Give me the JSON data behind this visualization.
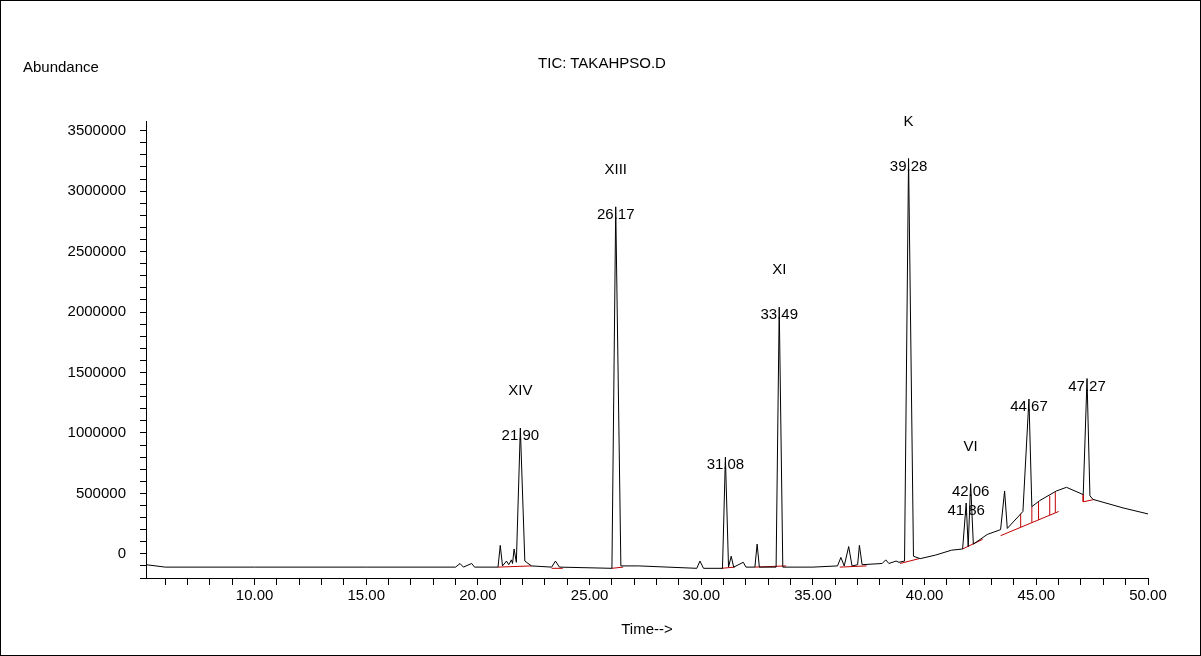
{
  "chart_data": {
    "type": "line",
    "title": "TIC: TAKAHPSO.D",
    "xlabel": "Time-->",
    "ylabel": "Abundance",
    "xlim": [
      5.14,
      50
    ],
    "ylim": [
      -200000,
      3580000
    ],
    "xticks": [
      {
        "value": 6,
        "label": null
      },
      {
        "value": 7,
        "label": null
      },
      {
        "value": 8,
        "label": null
      },
      {
        "value": 9,
        "label": null
      },
      {
        "value": 10,
        "label": "10.00"
      },
      {
        "value": 11,
        "label": null
      },
      {
        "value": 12,
        "label": null
      },
      {
        "value": 13,
        "label": null
      },
      {
        "value": 14,
        "label": null
      },
      {
        "value": 15,
        "label": "15.00"
      },
      {
        "value": 16,
        "label": null
      },
      {
        "value": 17,
        "label": null
      },
      {
        "value": 18,
        "label": null
      },
      {
        "value": 19,
        "label": null
      },
      {
        "value": 20,
        "label": "20.00"
      },
      {
        "value": 21,
        "label": null
      },
      {
        "value": 22,
        "label": null
      },
      {
        "value": 23,
        "label": null
      },
      {
        "value": 24,
        "label": null
      },
      {
        "value": 25,
        "label": "25.00"
      },
      {
        "value": 26,
        "label": null
      },
      {
        "value": 27,
        "label": null
      },
      {
        "value": 28,
        "label": null
      },
      {
        "value": 29,
        "label": null
      },
      {
        "value": 30,
        "label": "30.00"
      },
      {
        "value": 31,
        "label": null
      },
      {
        "value": 32,
        "label": null
      },
      {
        "value": 33,
        "label": null
      },
      {
        "value": 34,
        "label": null
      },
      {
        "value": 35,
        "label": "35.00"
      },
      {
        "value": 36,
        "label": null
      },
      {
        "value": 37,
        "label": null
      },
      {
        "value": 38,
        "label": null
      },
      {
        "value": 39,
        "label": null
      },
      {
        "value": 40,
        "label": "40.00"
      },
      {
        "value": 41,
        "label": null
      },
      {
        "value": 42,
        "label": null
      },
      {
        "value": 43,
        "label": null
      },
      {
        "value": 44,
        "label": null
      },
      {
        "value": 45,
        "label": "45.00"
      },
      {
        "value": 46,
        "label": null
      },
      {
        "value": 47,
        "label": null
      },
      {
        "value": 48,
        "label": null
      },
      {
        "value": 49,
        "label": null
      },
      {
        "value": 50,
        "label": "50.00"
      }
    ],
    "yticks": [
      {
        "value": -200000,
        "label": null
      },
      {
        "value": -100000,
        "label": null
      },
      0,
      {
        "value": 100000,
        "label": null
      },
      {
        "value": 200000,
        "label": null
      },
      {
        "value": 300000,
        "label": null
      },
      {
        "value": 400000,
        "label": null
      },
      500000,
      {
        "value": 600000,
        "label": null
      },
      {
        "value": 700000,
        "label": null
      },
      {
        "value": 800000,
        "label": null
      },
      {
        "value": 900000,
        "label": null
      },
      1000000,
      {
        "value": 1100000,
        "label": null
      },
      {
        "value": 1200000,
        "label": null
      },
      {
        "value": 1300000,
        "label": null
      },
      {
        "value": 1400000,
        "label": null
      },
      1500000,
      {
        "value": 1600000,
        "label": null
      },
      {
        "value": 1700000,
        "label": null
      },
      {
        "value": 1800000,
        "label": null
      },
      {
        "value": 1900000,
        "label": null
      },
      2000000,
      {
        "value": 2100000,
        "label": null
      },
      {
        "value": 2200000,
        "label": null
      },
      {
        "value": 2300000,
        "label": null
      },
      {
        "value": 2400000,
        "label": null
      },
      2500000,
      {
        "value": 2600000,
        "label": null
      },
      {
        "value": 2700000,
        "label": null
      },
      {
        "value": 2800000,
        "label": null
      },
      {
        "value": 2900000,
        "label": null
      },
      3000000,
      {
        "value": 3100000,
        "label": null
      },
      {
        "value": 3200000,
        "label": null
      },
      {
        "value": 3300000,
        "label": null
      },
      {
        "value": 3400000,
        "label": null
      },
      3500000
    ],
    "grid": false,
    "legend": false,
    "marker": "none",
    "line_style": "solid",
    "series": [
      {
        "color": "#000000",
        "x": [
          5.14,
          6,
          10,
          15,
          19.0,
          19.2,
          19.35,
          19.72,
          19.85,
          20.9,
          21.0,
          21.1,
          21.28,
          21.38,
          21.5,
          21.55,
          21.62,
          21.72,
          21.9,
          22.1,
          22.4,
          23.3,
          23.47,
          23.65,
          26.0,
          26.17,
          26.4,
          27.2,
          29.8,
          29.94,
          30.1,
          30.95,
          31.08,
          31.22,
          31.34,
          31.45,
          31.88,
          32.0,
          32.4,
          32.5,
          32.6,
          33.35,
          33.49,
          33.65,
          35,
          36.1,
          36.25,
          36.4,
          36.6,
          36.75,
          37.0,
          37.08,
          37.2,
          38.1,
          38.26,
          38.4,
          38.72,
          38.85,
          39.1,
          39.28,
          39.5,
          39.8,
          40.5,
          41.2,
          41.7,
          41.86,
          41.95,
          42.06,
          42.18,
          42.8,
          43.4,
          43.58,
          43.7,
          44.4,
          44.67,
          44.8,
          45.15,
          45.9,
          46.35,
          47.1,
          47.27,
          47.4,
          47.54,
          48.88,
          50
        ],
        "values": [
          -90000,
          -110000,
          -110000,
          -110000,
          -110000,
          -80000,
          -110000,
          -80000,
          -110000,
          -110000,
          70000,
          -100000,
          -60000,
          -90000,
          -50000,
          -80000,
          40000,
          -70000,
          1040000,
          -60000,
          -100000,
          -110000,
          -60000,
          -110000,
          -120000,
          2870000,
          -100000,
          -100000,
          -120000,
          -60000,
          -120000,
          -120000,
          800000,
          -110000,
          -20000,
          -110000,
          -70000,
          -110000,
          -110000,
          80000,
          -110000,
          -110000,
          2040000,
          -110000,
          -110000,
          -100000,
          -30000,
          -100000,
          60000,
          -100000,
          -90000,
          70000,
          -90000,
          -80000,
          -50000,
          -80000,
          -60000,
          -70000,
          -60000,
          3270000,
          -20000,
          -40000,
          -10000,
          30000,
          40000,
          420000,
          60000,
          580000,
          80000,
          160000,
          200000,
          520000,
          210000,
          350000,
          1280000,
          390000,
          440000,
          520000,
          550000,
          490000,
          1450000,
          480000,
          450000,
          380000,
          330000
        ]
      },
      {
        "color": "#c00000",
        "x": [
          20.9,
          22.4
        ],
        "values": [
          -110000,
          -100000
        ]
      },
      {
        "color": "#c00000",
        "x": [
          23.3,
          23.8
        ],
        "values": [
          -120000,
          -120000
        ]
      },
      {
        "color": "#c00000",
        "x": [
          26.0,
          26.5
        ],
        "values": [
          -120000,
          -110000
        ]
      },
      {
        "color": "#c00000",
        "x": [
          30.9,
          31.5
        ],
        "values": [
          -120000,
          -110000
        ]
      },
      {
        "color": "#c00000",
        "x": [
          32.4,
          33.8
        ],
        "values": [
          -110000,
          -100000
        ]
      },
      {
        "color": "#c00000",
        "x": [
          36.2,
          37.4
        ],
        "values": [
          -110000,
          -100000
        ]
      },
      {
        "color": "#c00000",
        "x": [
          38.9,
          39.75
        ],
        "values": [
          -80000,
          -40000
        ]
      },
      {
        "color": "#c00000",
        "x": [
          41.7,
          42.6
        ],
        "values": [
          40000,
          120000
        ]
      },
      {
        "color": "#c00000",
        "x": [
          43.4,
          46.0
        ],
        "values": [
          150000,
          350000
        ]
      },
      {
        "color": "#c00000",
        "x": [
          44.3,
          44.3
        ],
        "values": [
          220000,
          330000
        ]
      },
      {
        "color": "#c00000",
        "x": [
          44.8,
          44.8
        ],
        "values": [
          260000,
          390000
        ]
      },
      {
        "color": "#c00000",
        "x": [
          45.1,
          45.1
        ],
        "values": [
          280000,
          430000
        ]
      },
      {
        "color": "#c00000",
        "x": [
          45.6,
          45.6
        ],
        "values": [
          320000,
          480000
        ]
      },
      {
        "color": "#c00000",
        "x": [
          45.85,
          45.85
        ],
        "values": [
          340000,
          510000
        ]
      },
      {
        "color": "#c00000",
        "x": [
          47.1,
          47.1,
          47.6
        ],
        "values": [
          490000,
          430000,
          450000
        ]
      }
    ],
    "annotations": [
      {
        "text": "XIV",
        "x": 21.9,
        "y": 1040000
      },
      {
        "text": "21.90",
        "x": 21.9,
        "y": 1040000
      },
      {
        "text": "XIII",
        "x": 26.17,
        "y": 2870000
      },
      {
        "text": "26.17",
        "x": 26.17,
        "y": 2870000
      },
      {
        "text": "31.08",
        "x": 31.08,
        "y": 800000
      },
      {
        "text": "XI",
        "x": 33.49,
        "y": 2040000
      },
      {
        "text": "33.49",
        "x": 33.49,
        "y": 2040000
      },
      {
        "text": "K",
        "x": 39.28,
        "y": 3270000
      },
      {
        "text": "39.28",
        "x": 39.28,
        "y": 3270000
      },
      {
        "text": "VI",
        "x": 42.06,
        "y": 580000
      },
      {
        "text": "42.06",
        "x": 42.06,
        "y": 580000
      },
      {
        "text": "41.86",
        "x": 41.86,
        "y": 420000
      },
      {
        "text": "44.67",
        "x": 44.67,
        "y": 1280000
      },
      {
        "text": "47.27",
        "x": 47.27,
        "y": 1450000
      }
    ]
  }
}
